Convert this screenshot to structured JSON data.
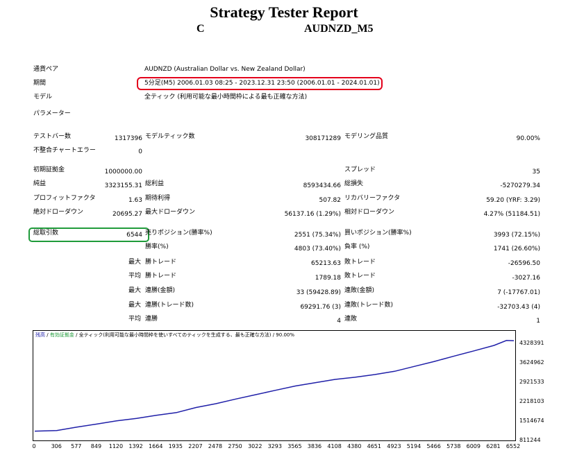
{
  "header": {
    "title": "Strategy Tester Report",
    "ea_name": "C",
    "symbol_period": "AUDNZD_M5"
  },
  "general": {
    "pair_label": "通貨ペア",
    "pair_value": "AUDNZD (Australian Dollar vs. New Zealand Dollar)",
    "period_label": "期間",
    "period_value": "5分足(M5) 2006.01.03 08:25 - 2023.12.31 23:50 (2006.01.01 - 2024.01.01)",
    "model_label": "モデル",
    "model_value": "全ティック (利用可能な最小時間枠による最も正確な方法)",
    "params_label": "パラメーター"
  },
  "stats": {
    "test_bars_label": "テストバー数",
    "test_bars_value": "1317396",
    "model_ticks_label": "モデルティック数",
    "model_ticks_value": "308171289",
    "model_quality_label": "モデリング品質",
    "model_quality_value": "90.00%",
    "mismatch_label": "不整合チャートエラー",
    "mismatch_value": "0",
    "deposit_label": "初期証拠金",
    "deposit_value": "1000000.00",
    "spread_label": "スプレッド",
    "spread_value": "35",
    "net_profit_label": "純益",
    "net_profit_value": "3323155.31",
    "gross_profit_label": "総利益",
    "gross_profit_value": "8593434.66",
    "gross_loss_label": "総損失",
    "gross_loss_value": "-5270279.34",
    "pf_label": "プロフィットファクタ",
    "pf_value": "1.63",
    "expected_label": "期待利得",
    "expected_value": "507.82",
    "recovery_label": "リカバリーファクタ",
    "recovery_value": "59.20 (YRF: 3.29)",
    "abs_dd_label": "絶対ドローダウン",
    "abs_dd_value": "20695.27",
    "max_dd_label": "最大ドローダウン",
    "max_dd_value": "56137.16 (1.29%)",
    "rel_dd_label": "相対ドローダウン",
    "rel_dd_value": "4.27% (51184.51)",
    "total_trades_label": "総取引数",
    "total_trades_value": "6544",
    "short_label": "売りポジション(勝率%)",
    "short_value": "2551 (75.34%)",
    "long_label": "買いポジション(勝率%)",
    "long_value": "3993 (72.15%)",
    "win_rate_label": "勝率(%)",
    "win_rate_value": "4803 (73.40%)",
    "loss_rate_label": "負率 (%)",
    "loss_rate_value": "1741 (26.60%)",
    "max_prefix": "最大",
    "avg_prefix": "平均",
    "largest_win_label": "勝トレード",
    "largest_win_value": "65213.63",
    "largest_loss_label": "敗トレード",
    "largest_loss_value": "-26596.50",
    "avg_win_label": "勝トレード",
    "avg_win_value": "1789.18",
    "avg_loss_label": "敗トレード",
    "avg_loss_value": "-3027.16",
    "max_consec_wins_label": "連勝(金額)",
    "max_consec_wins_value": "33 (59428.89)",
    "max_consec_losses_label": "連敗(金額)",
    "max_consec_losses_value": "7 (-17767.01)",
    "max_consec_profit_label": "連勝(トレード数)",
    "max_consec_profit_value": "69291.76 (3)",
    "max_consec_loss_label": "連敗(トレード数)",
    "max_consec_loss_value": "-32703.43 (4)",
    "avg_consec_wins_label": "連勝",
    "avg_consec_wins_value": "4",
    "avg_consec_losses_label": "連敗",
    "avg_consec_losses_value": "1"
  },
  "colors": {
    "highlight_period": "#e3001b",
    "highlight_trades": "#1f9b3a",
    "balance_line": "#1f1fa8"
  },
  "chart_legend": {
    "balance": "残高",
    "equity": "有効証拠金",
    "rest": "/ 全ティック(利用可能な最小時間枠を使いすべてのティックを生成する、最も正確な方法) / 90.00%",
    "sep": "/"
  },
  "chart_data": {
    "type": "line",
    "y_ticks": [
      "4328391",
      "3624962",
      "2921533",
      "2218103",
      "1514674",
      "811244"
    ],
    "x_ticks": [
      "0",
      "306",
      "577",
      "849",
      "1120",
      "1392",
      "1664",
      "1935",
      "2207",
      "2478",
      "2750",
      "3022",
      "3293",
      "3565",
      "3836",
      "4108",
      "4380",
      "4651",
      "4923",
      "5194",
      "5466",
      "5738",
      "6009",
      "6281",
      "6552"
    ],
    "ylim": [
      811244,
      4328391
    ],
    "xlim": [
      0,
      6552
    ],
    "series": [
      {
        "values": [
          [
            0,
            1000000
          ],
          [
            300,
            1020000
          ],
          [
            577,
            1150000
          ],
          [
            849,
            1260000
          ],
          [
            1120,
            1380000
          ],
          [
            1392,
            1470000
          ],
          [
            1664,
            1580000
          ],
          [
            1935,
            1680000
          ],
          [
            2207,
            1870000
          ],
          [
            2478,
            2010000
          ],
          [
            2750,
            2180000
          ],
          [
            3022,
            2340000
          ],
          [
            3293,
            2500000
          ],
          [
            3565,
            2660000
          ],
          [
            3836,
            2780000
          ],
          [
            4108,
            2900000
          ],
          [
            4380,
            2980000
          ],
          [
            4651,
            3080000
          ],
          [
            4923,
            3200000
          ],
          [
            5194,
            3380000
          ],
          [
            5466,
            3560000
          ],
          [
            5738,
            3760000
          ],
          [
            6009,
            3950000
          ],
          [
            6281,
            4150000
          ],
          [
            6450,
            4330000
          ],
          [
            6552,
            4323000
          ]
        ]
      }
    ]
  }
}
